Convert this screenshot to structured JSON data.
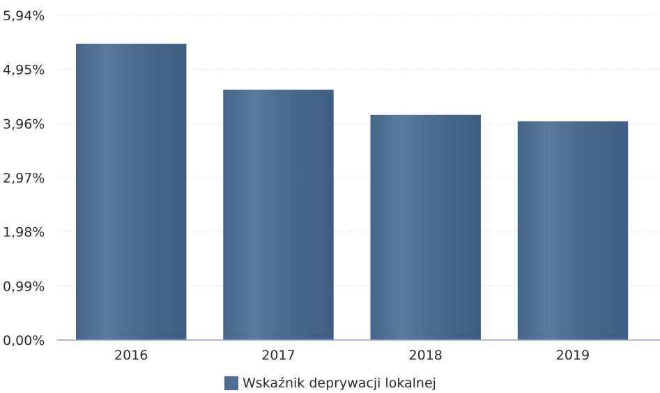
{
  "chart_data": {
    "type": "bar",
    "title": "",
    "xlabel": "",
    "ylabel": "",
    "categories": [
      "2016",
      "2017",
      "2018",
      "2019"
    ],
    "series": [
      {
        "name": "Wskaźnik deprywacji lokalnej",
        "values": [
          5.42,
          4.58,
          4.12,
          4.0
        ]
      }
    ],
    "ylim": [
      0,
      5.94
    ],
    "yticks": [
      "0,00%",
      "0,99%",
      "1,98%",
      "2,97%",
      "3,96%",
      "4,95%",
      "5,94%"
    ],
    "grid": true,
    "legend_position": "bottom-center",
    "bar_color": "#4f6e93"
  },
  "legend": {
    "label": "Wskaźnik deprywacji lokalnej",
    "color": "#4f6e93"
  }
}
